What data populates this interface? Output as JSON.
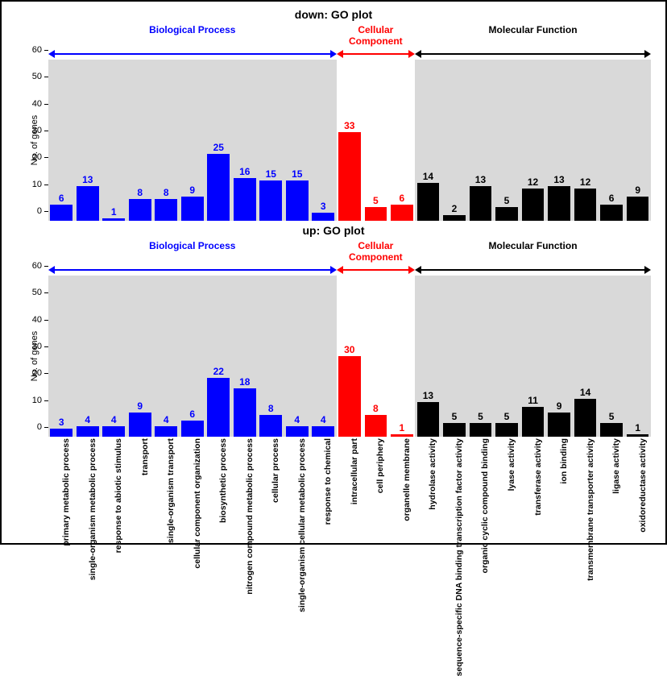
{
  "title_down": "down: GO plot",
  "title_up": "up: GO plot",
  "y_label": "No. of genes",
  "ylim": [
    0,
    60
  ],
  "ytick_step": 10,
  "yticks": [
    0,
    10,
    20,
    30,
    40,
    50,
    60
  ],
  "sections": [
    {
      "name": "Biological Process",
      "color": "#0000ff",
      "bar_color": "#0000ff",
      "bg": "#d9d9d9",
      "width_pct": 47.8
    },
    {
      "name": "Cellular Component",
      "color": "#ff0000",
      "bar_color": "#ff0000",
      "bg": "#ffffff",
      "width_pct": 13.05
    },
    {
      "name": "Molecular Function",
      "color": "#000000",
      "bar_color": "#000000",
      "bg": "#d9d9d9",
      "width_pct": 39.15
    }
  ],
  "categories": [
    {
      "s": 0,
      "label": "primary metabolic process"
    },
    {
      "s": 0,
      "label": "single-organism metabolic process"
    },
    {
      "s": 0,
      "label": "response to abiotic stimulus"
    },
    {
      "s": 0,
      "label": "transport"
    },
    {
      "s": 0,
      "label": "single-organism transport"
    },
    {
      "s": 0,
      "label": "cellular component organization"
    },
    {
      "s": 0,
      "label": "biosynthetic process"
    },
    {
      "s": 0,
      "label": "nitrogen compound metabolic process"
    },
    {
      "s": 0,
      "label": "cellular process"
    },
    {
      "s": 0,
      "label": "single-organism cellular metabolic process"
    },
    {
      "s": 0,
      "label": "response to chemical"
    },
    {
      "s": 1,
      "label": "intracellular part"
    },
    {
      "s": 1,
      "label": "cell periphery"
    },
    {
      "s": 1,
      "label": "organelle membrane"
    },
    {
      "s": 2,
      "label": "hydrolase activity"
    },
    {
      "s": 2,
      "label": "sequence-specific DNA binding transcription factor activity"
    },
    {
      "s": 2,
      "label": "organic cyclic compound binding"
    },
    {
      "s": 2,
      "label": "lyase activity"
    },
    {
      "s": 2,
      "label": "transferase activity"
    },
    {
      "s": 2,
      "label": "ion binding"
    },
    {
      "s": 2,
      "label": "transmembrane transporter activity"
    },
    {
      "s": 2,
      "label": "ligase activity"
    },
    {
      "s": 2,
      "label": "oxidoreductase activity"
    }
  ],
  "values_down": [
    6,
    13,
    1,
    8,
    8,
    9,
    25,
    16,
    15,
    3,
    null,
    33,
    5,
    6,
    14,
    2,
    13,
    5,
    12,
    13,
    12,
    6,
    9
  ],
  "values_up": [
    3,
    4,
    4,
    9,
    4,
    6,
    22,
    18,
    8,
    4,
    null,
    30,
    8,
    1,
    13,
    5,
    5,
    5,
    11,
    9,
    14,
    5,
    1
  ],
  "axis_color": "#000000",
  "label_fontsize": 10.5,
  "value_fontsize": 12,
  "title_fontsize": 14,
  "section_header_fontsize": 12
}
